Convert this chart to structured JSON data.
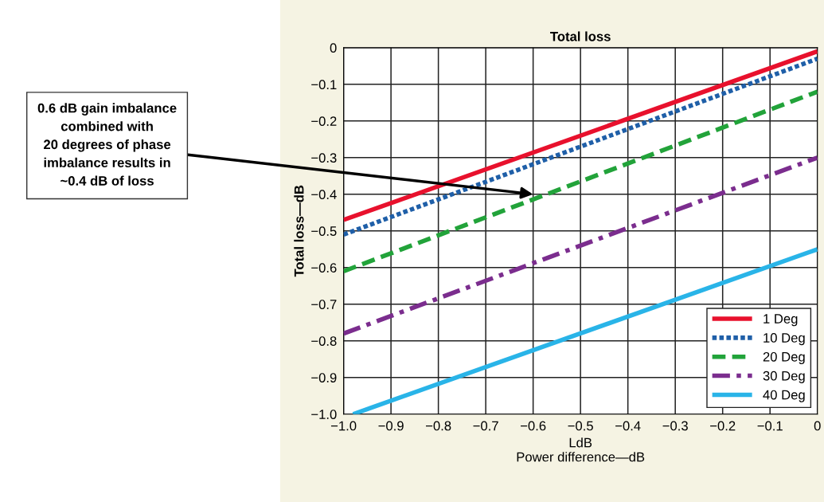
{
  "chart_data": {
    "type": "line",
    "title": "Total loss",
    "xlabel": "LdB\nPower difference—dB",
    "ylabel": "Total loss—dB",
    "xlim": [
      -1.0,
      0
    ],
    "ylim": [
      -1.0,
      0
    ],
    "xticks": [
      {
        "value": -1.0,
        "label": "−1.0"
      },
      {
        "value": -0.9,
        "label": "−0.9"
      },
      {
        "value": -0.8,
        "label": "−0.8"
      },
      {
        "value": -0.7,
        "label": "−0.7"
      },
      {
        "value": -0.6,
        "label": "−0.6"
      },
      {
        "value": -0.5,
        "label": "−0.5"
      },
      {
        "value": -0.4,
        "label": "−0.4"
      },
      {
        "value": -0.3,
        "label": "−0.3"
      },
      {
        "value": -0.2,
        "label": "−0.2"
      },
      {
        "value": -0.1,
        "label": "−0.1"
      },
      0
    ],
    "yticks": [
      0,
      {
        "value": -0.1,
        "label": "−0.1"
      },
      {
        "value": -0.2,
        "label": "−0.2"
      },
      {
        "value": -0.3,
        "label": "−0.3"
      },
      {
        "value": -0.4,
        "label": "−0.4"
      },
      {
        "value": -0.5,
        "label": "−0.5"
      },
      {
        "value": -0.6,
        "label": "−0.6"
      },
      {
        "value": -0.7,
        "label": "−0.7"
      },
      {
        "value": -0.8,
        "label": "−0.8"
      },
      {
        "value": -0.9,
        "label": "−0.9"
      },
      {
        "value": -1.0,
        "label": "−1.0"
      }
    ],
    "grid": true,
    "legend": "lower right",
    "marker": "none",
    "series": [
      {
        "name": "1 Deg",
        "color": "#e8112d",
        "line_style": "solid",
        "x": [
          -1.0,
          0
        ],
        "values": [
          -0.47,
          -0.01
        ]
      },
      {
        "name": "10 Deg",
        "color": "#1f5fa8",
        "line_style": "dotted",
        "x": [
          -1.0,
          0
        ],
        "values": [
          -0.51,
          -0.03
        ]
      },
      {
        "name": "20 Deg",
        "color": "#22a33a",
        "line_style": "dashed",
        "x": [
          -1.0,
          0
        ],
        "values": [
          -0.61,
          -0.12
        ]
      },
      {
        "name": "30 Deg",
        "color": "#7b2d8e",
        "line_style": "dashdot",
        "x": [
          -1.0,
          0
        ],
        "values": [
          -0.78,
          -0.3
        ]
      },
      {
        "name": "40 Deg",
        "color": "#29b4e8",
        "line_style": "solid",
        "x": [
          -0.98,
          0
        ],
        "values": [
          -1.0,
          -0.55
        ]
      }
    ],
    "annotations": [
      {
        "text": "0.6 dB gain imbalance\ncombined with\n20 degrees of phase\nimbalance results in\n~0.4 dB of loss",
        "x": -0.6,
        "y": -0.4
      }
    ]
  }
}
